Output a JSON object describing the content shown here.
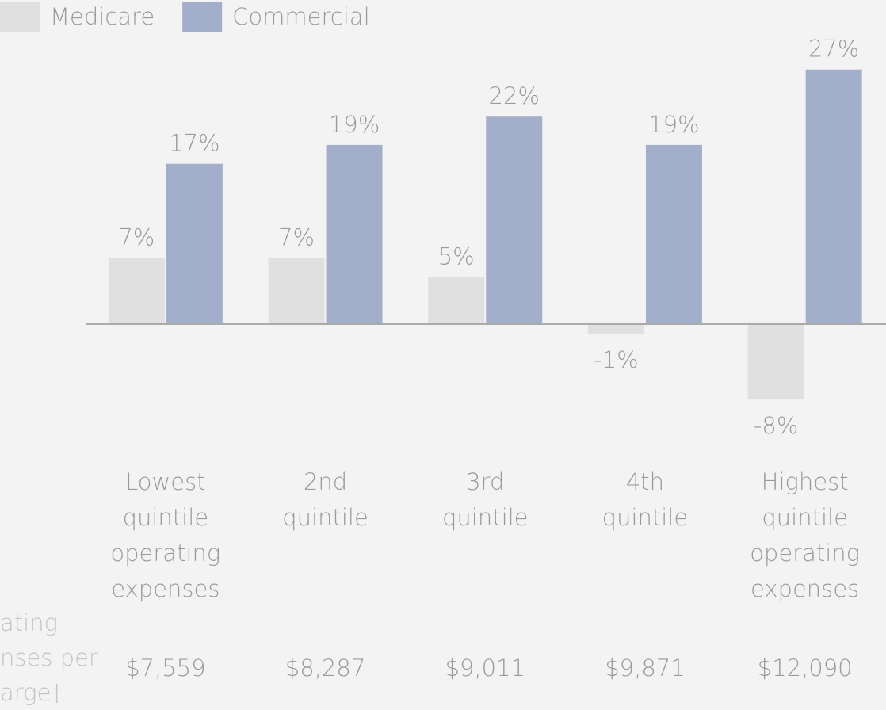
{
  "chart_data": {
    "type": "bar",
    "categories": [
      "Lowest quintile operating expenses",
      "2nd quintile",
      "3rd quintile",
      "4th quintile",
      "Highest quintile operating expenses"
    ],
    "series": [
      {
        "name": "Medicare",
        "color": "#e0e0e0",
        "values": [
          7,
          7,
          5,
          -1,
          -8
        ],
        "value_labels": [
          "7%",
          "7%",
          "5%",
          "-1%",
          "-8%"
        ]
      },
      {
        "name": "Commercial",
        "color": "#a3aecb",
        "values": [
          17,
          19,
          22,
          19,
          27
        ],
        "value_labels": [
          "17%",
          "19%",
          "22%",
          "19%",
          "27%"
        ]
      }
    ],
    "ylim": [
      -10,
      30
    ],
    "row_label_lines": [
      "ating",
      "nses per",
      "arge†"
    ],
    "row_values": [
      "$7,559",
      "$8,287",
      "$9,011",
      "$9,871",
      "$12,090"
    ]
  }
}
